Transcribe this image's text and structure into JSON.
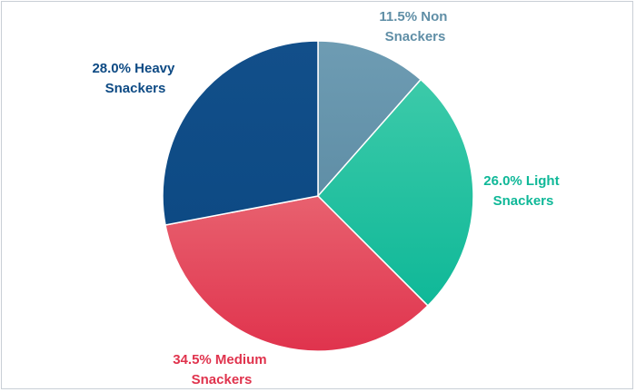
{
  "chart_data": {
    "type": "pie",
    "slices": [
      {
        "name": "Non Snackers",
        "value": 11.5,
        "label_line1": "11.5% Non",
        "label_line2": "Snackers",
        "color": "#5f8ea6",
        "color_light": "#6e9cb3"
      },
      {
        "name": "Light Snackers",
        "value": 26.0,
        "label_line1": "26.0% Light",
        "label_line2": "Snackers",
        "color": "#0fb898",
        "color_light": "#3ccaa9"
      },
      {
        "name": "Medium Snackers",
        "value": 34.5,
        "label_line1": "34.5% Medium",
        "label_line2": "Snackers",
        "color": "#e0334d",
        "color_light": "#e8616f"
      },
      {
        "name": "Heavy Snackers",
        "value": 28.0,
        "label_line1": "28.0% Heavy",
        "label_line2": "Snackers",
        "color": "#0d4a84",
        "color_light": "#124f8a"
      }
    ],
    "legend": "none",
    "start_angle": "12 o'clock, clockwise"
  }
}
